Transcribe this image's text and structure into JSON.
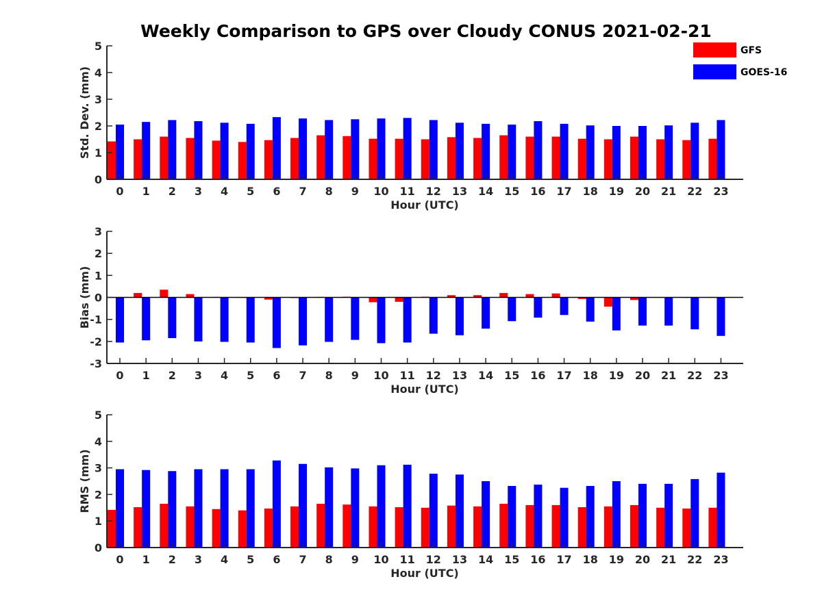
{
  "title": "Weekly Comparison to GPS over Cloudy CONUS 2021-02-21",
  "legend": [
    {
      "label": "GFS",
      "color": "#ff0000"
    },
    {
      "label": "GOES-16",
      "color": "#0000ff"
    }
  ],
  "chart_data": [
    {
      "type": "bar",
      "xlabel": "Hour (UTC)",
      "ylabel": "Std. Dev. (mm)",
      "ylim": [
        0,
        5
      ],
      "yticks": [
        "0",
        "1",
        "2",
        "3",
        "4",
        "5"
      ],
      "categories": [
        "0",
        "1",
        "2",
        "3",
        "4",
        "5",
        "6",
        "7",
        "8",
        "9",
        "10",
        "11",
        "12",
        "13",
        "14",
        "15",
        "16",
        "17",
        "18",
        "19",
        "20",
        "21",
        "22",
        "23"
      ],
      "series": [
        {
          "name": "GFS",
          "color": "#ff0000",
          "values": [
            1.42,
            1.5,
            1.6,
            1.55,
            1.45,
            1.4,
            1.47,
            1.55,
            1.65,
            1.62,
            1.52,
            1.52,
            1.5,
            1.58,
            1.55,
            1.65,
            1.6,
            1.6,
            1.52,
            1.5,
            1.6,
            1.5,
            1.47,
            1.52
          ]
        },
        {
          "name": "GOES-16",
          "color": "#0000ff",
          "values": [
            2.05,
            2.15,
            2.22,
            2.18,
            2.12,
            2.08,
            2.33,
            2.28,
            2.22,
            2.25,
            2.28,
            2.3,
            2.22,
            2.12,
            2.08,
            2.05,
            2.18,
            2.08,
            2.02,
            2.0,
            2.0,
            2.02,
            2.12,
            2.22
          ]
        }
      ]
    },
    {
      "type": "bar",
      "xlabel": "Hour (UTC)",
      "ylabel": "Bias (mm)",
      "ylim": [
        -3,
        3
      ],
      "yticks": [
        "-3",
        "-2",
        "-1",
        "0",
        "1",
        "2",
        "3"
      ],
      "categories": [
        "0",
        "1",
        "2",
        "3",
        "4",
        "5",
        "6",
        "7",
        "8",
        "9",
        "10",
        "11",
        "12",
        "13",
        "14",
        "15",
        "16",
        "17",
        "18",
        "19",
        "20",
        "21",
        "22",
        "23"
      ],
      "series": [
        {
          "name": "GFS",
          "color": "#ff0000",
          "values": [
            0.0,
            0.2,
            0.35,
            0.15,
            0.02,
            0.0,
            -0.1,
            -0.03,
            0.02,
            0.03,
            -0.22,
            -0.2,
            0.03,
            0.1,
            0.1,
            0.2,
            0.15,
            0.18,
            -0.07,
            -0.42,
            -0.12,
            0.0,
            -0.02,
            0.0
          ]
        },
        {
          "name": "GOES-16",
          "color": "#0000ff",
          "values": [
            -2.05,
            -1.95,
            -1.85,
            -2.0,
            -2.02,
            -2.05,
            -2.3,
            -2.18,
            -2.02,
            -1.93,
            -2.08,
            -2.05,
            -1.65,
            -1.72,
            -1.42,
            -1.08,
            -0.92,
            -0.8,
            -1.1,
            -1.5,
            -1.28,
            -1.28,
            -1.45,
            -1.75
          ]
        }
      ]
    },
    {
      "type": "bar",
      "xlabel": "Hour (UTC)",
      "ylabel": "RMS (mm)",
      "ylim": [
        0,
        5
      ],
      "yticks": [
        "0",
        "1",
        "2",
        "3",
        "4",
        "5"
      ],
      "categories": [
        "0",
        "1",
        "2",
        "3",
        "4",
        "5",
        "6",
        "7",
        "8",
        "9",
        "10",
        "11",
        "12",
        "13",
        "14",
        "15",
        "16",
        "17",
        "18",
        "19",
        "20",
        "21",
        "22",
        "23"
      ],
      "series": [
        {
          "name": "GFS",
          "color": "#ff0000",
          "values": [
            1.42,
            1.52,
            1.65,
            1.55,
            1.45,
            1.4,
            1.47,
            1.55,
            1.65,
            1.62,
            1.55,
            1.52,
            1.5,
            1.58,
            1.55,
            1.65,
            1.6,
            1.6,
            1.52,
            1.55,
            1.6,
            1.5,
            1.47,
            1.5
          ]
        },
        {
          "name": "GOES-16",
          "color": "#0000ff",
          "values": [
            2.95,
            2.92,
            2.88,
            2.95,
            2.95,
            2.95,
            3.28,
            3.15,
            3.02,
            2.98,
            3.1,
            3.12,
            2.78,
            2.75,
            2.5,
            2.32,
            2.37,
            2.25,
            2.32,
            2.5,
            2.4,
            2.4,
            2.58,
            2.82
          ]
        }
      ]
    }
  ]
}
